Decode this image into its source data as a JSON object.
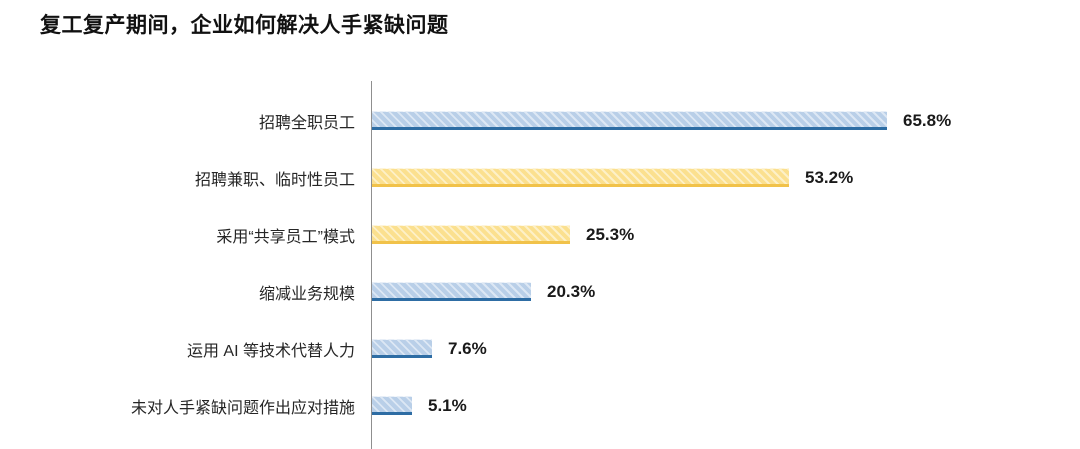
{
  "title": "复工复产期间，企业如何解决人手紧缺问题",
  "chart_data": {
    "type": "bar",
    "orientation": "horizontal",
    "title": "复工复产期间，企业如何解决人手紧缺问题",
    "categories": [
      "招聘全职员工",
      "招聘兼职、临时性员工",
      "采用“共享员工”模式",
      "缩减业务规模",
      "运用 AI 等技术代替人力",
      "未对人手紧缺问题作出应对措施"
    ],
    "values": [
      65.8,
      53.2,
      25.3,
      20.3,
      7.6,
      5.1
    ],
    "value_labels": [
      "65.8%",
      "53.2%",
      "25.3%",
      "20.3%",
      "7.6%",
      "5.1%"
    ],
    "bar_styles": [
      "blue",
      "yellow",
      "yellow",
      "blue",
      "blue",
      "blue"
    ],
    "xlabel": "",
    "ylabel": "",
    "xlim": [
      0,
      70
    ],
    "grid": false,
    "legend": false,
    "axis_ticks_visible": false,
    "colors": {
      "blue_fill": "#b9cfe8",
      "blue_edge": "#2e6da4",
      "yellow_fill": "#fbe08f",
      "yellow_edge": "#f1c24a",
      "axis_line": "#8f8f8f",
      "title_text": "#111111",
      "label_text": "#262626",
      "value_text": "#1a1a1a"
    }
  }
}
